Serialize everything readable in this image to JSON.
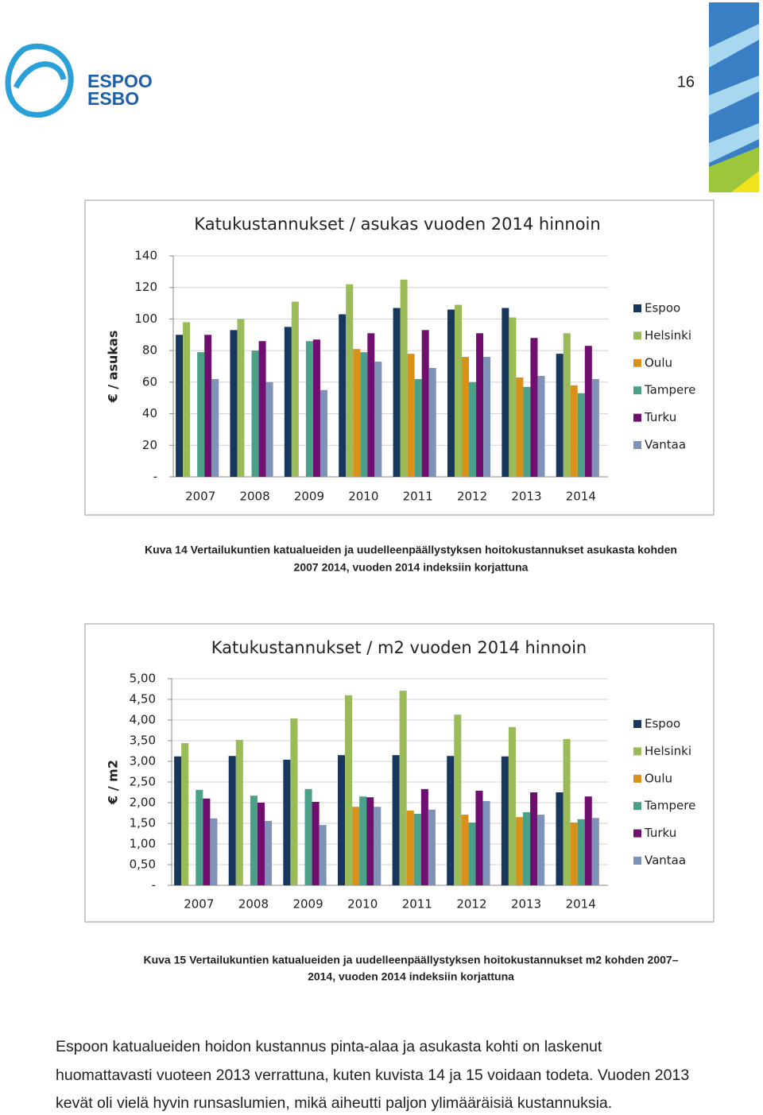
{
  "header": {
    "logo": [
      "ESPOO",
      "ESBO"
    ],
    "page_number": "16"
  },
  "chart_data": [
    {
      "type": "bar",
      "title": "Katukustannukset / asukas vuoden 2014 hinnoin",
      "y_label": "€ / asukas",
      "categories": [
        "2007",
        "2008",
        "2009",
        "2010",
        "2011",
        "2012",
        "2013",
        "2014"
      ],
      "series": [
        {
          "name": "Espoo",
          "color": "#17375e",
          "values": [
            90,
            93,
            95,
            103,
            107,
            106,
            107,
            78
          ]
        },
        {
          "name": "Helsinki",
          "color": "#9bbb59",
          "values": [
            98,
            100,
            111,
            122,
            125,
            109,
            101,
            91
          ]
        },
        {
          "name": "Oulu",
          "color": "#d9911a",
          "values": [
            null,
            null,
            null,
            81,
            78,
            76,
            63,
            58
          ]
        },
        {
          "name": "Tampere",
          "color": "#4ba08a",
          "values": [
            79,
            80,
            86,
            79,
            62,
            60,
            57,
            53
          ]
        },
        {
          "name": "Turku",
          "color": "#700f6f",
          "values": [
            90,
            86,
            87,
            91,
            93,
            91,
            88,
            83
          ]
        },
        {
          "name": "Vantaa",
          "color": "#7f93b9",
          "values": [
            62,
            60,
            55,
            73,
            69,
            76,
            64,
            62
          ]
        }
      ],
      "ylim": [
        0,
        140
      ],
      "yticks": [
        {
          "value": 0,
          "label": "-"
        },
        20,
        40,
        60,
        80,
        100,
        120,
        140
      ],
      "grid": true,
      "legend": "right"
    },
    {
      "type": "bar",
      "title": "Katukustannukset / m2 vuoden 2014 hinnoin",
      "y_label": "€ / m2",
      "categories": [
        "2007",
        "2008",
        "2009",
        "2010",
        "2011",
        "2012",
        "2013",
        "2014"
      ],
      "series": [
        {
          "name": "Espoo",
          "color": "#17375e",
          "values": [
            3.12,
            3.13,
            3.04,
            3.15,
            3.15,
            3.13,
            3.12,
            2.25
          ]
        },
        {
          "name": "Helsinki",
          "color": "#9bbb59",
          "values": [
            3.44,
            3.52,
            4.04,
            4.6,
            4.71,
            4.13,
            3.83,
            3.54
          ]
        },
        {
          "name": "Oulu",
          "color": "#d9911a",
          "values": [
            null,
            null,
            null,
            1.9,
            1.81,
            1.71,
            1.65,
            1.52
          ]
        },
        {
          "name": "Tampere",
          "color": "#4ba08a",
          "values": [
            2.31,
            2.17,
            2.33,
            2.15,
            1.73,
            1.52,
            1.77,
            1.6
          ]
        },
        {
          "name": "Turku",
          "color": "#700f6f",
          "values": [
            2.1,
            2.0,
            2.02,
            2.13,
            2.33,
            2.29,
            2.25,
            2.15
          ]
        },
        {
          "name": "Vantaa",
          "color": "#7f93b9",
          "values": [
            1.62,
            1.56,
            1.46,
            1.9,
            1.83,
            2.04,
            1.71,
            1.63
          ]
        }
      ],
      "ylim": [
        0,
        5
      ],
      "yticks": [
        {
          "value": 0,
          "label": "-"
        },
        {
          "value": 0.5,
          "label": "0,50"
        },
        {
          "value": 1,
          "label": "1,00"
        },
        {
          "value": 1.5,
          "label": "1,50"
        },
        {
          "value": 2,
          "label": "2,00"
        },
        {
          "value": 2.5,
          "label": "2,50"
        },
        {
          "value": 3,
          "label": "3,00"
        },
        {
          "value": 3.5,
          "label": "3,50"
        },
        {
          "value": 4,
          "label": "4,00"
        },
        {
          "value": 4.5,
          "label": "4,50"
        },
        {
          "value": 5,
          "label": "5,00"
        }
      ],
      "grid": true,
      "legend": "right"
    }
  ],
  "captions": [
    [
      "Kuva 14 Vertailukuntien katualueiden ja uudelleenpäällystyksen hoitokustannukset asukasta kohden",
      "2007 2014, vuoden 2014 indeksiin korjattuna"
    ],
    [
      "Kuva 15 Vertailukuntien katualueiden ja uudelleenpäällystyksen hoitokustannukset m2 kohden 2007–",
      "2014, vuoden 2014 indeksiin korjattuna"
    ]
  ],
  "paragraph": [
    "Espoon katualueiden hoidon kustannus pinta-alaa ja asukasta kohti on laskenut",
    "huomattavasti vuoteen 2013 verrattuna, kuten kuvista 14 ja 15 voidaan todeta. Vuoden 2013",
    "kevät oli vielä hyvin runsaslumien, mikä aiheutti paljon ylimääräisiä kustannuksia."
  ]
}
